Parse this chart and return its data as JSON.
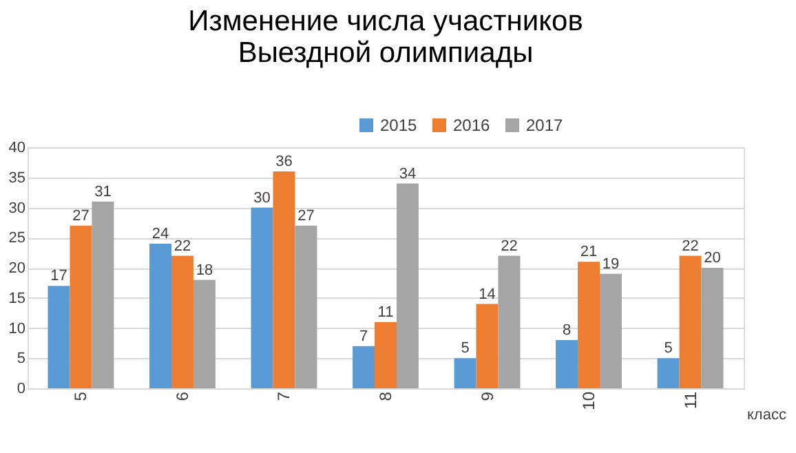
{
  "chart_data": {
    "type": "bar",
    "title": [
      "Изменение числа участников",
      "Выездной олимпиады"
    ],
    "xlabel": "класс",
    "categories": [
      "5",
      "6",
      "7",
      "8",
      "9",
      "10",
      "11"
    ],
    "series": [
      {
        "name": "2015",
        "color": "#5b9bd5",
        "values": [
          17,
          24,
          30,
          7,
          5,
          8,
          5
        ]
      },
      {
        "name": "2016",
        "color": "#ed7d31",
        "values": [
          27,
          22,
          36,
          11,
          14,
          21,
          22
        ]
      },
      {
        "name": "2017",
        "color": "#a5a5a5",
        "values": [
          31,
          18,
          27,
          34,
          22,
          19,
          20
        ]
      }
    ],
    "ylim": [
      0,
      40
    ],
    "yticks": [
      0,
      5,
      10,
      15,
      20,
      25,
      30,
      35,
      40
    ],
    "grid": "y",
    "legend": "top",
    "data_labels": true
  }
}
